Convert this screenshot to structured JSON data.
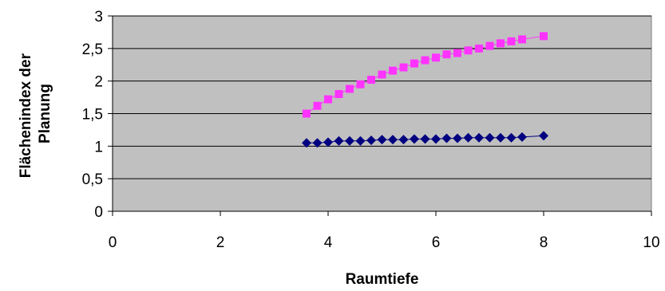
{
  "chart_data": {
    "type": "scatter",
    "xlabel": "Raumtiefe",
    "ylabel_lines": [
      "Flächenindex der",
      "Planung"
    ],
    "xlim": [
      0,
      10
    ],
    "ylim": [
      0,
      3
    ],
    "x_ticks": [
      0,
      2,
      4,
      6,
      8,
      10
    ],
    "x_tick_labels": [
      "0",
      "2",
      "4",
      "6",
      "8",
      "10"
    ],
    "y_ticks": [
      0,
      0.5,
      1,
      1.5,
      2,
      2.5,
      3
    ],
    "y_tick_labels": [
      "0",
      "0,5",
      "1",
      "1,5",
      "2",
      "2,5",
      "3"
    ],
    "grid": "horizontal",
    "plot_background": "#c0c0c0",
    "series": [
      {
        "marker": "square",
        "color": "#ff33ff",
        "x": [
          3.6,
          3.8,
          4.0,
          4.2,
          4.4,
          4.6,
          4.8,
          5.0,
          5.2,
          5.4,
          5.6,
          5.8,
          6.0,
          6.2,
          6.4,
          6.6,
          6.8,
          7.0,
          7.2,
          7.4,
          7.6,
          8.0
        ],
        "values": [
          1.5,
          1.62,
          1.72,
          1.8,
          1.88,
          1.95,
          2.02,
          2.1,
          2.16,
          2.21,
          2.27,
          2.32,
          2.36,
          2.41,
          2.43,
          2.47,
          2.5,
          2.54,
          2.58,
          2.61,
          2.64,
          2.69
        ]
      },
      {
        "marker": "diamond",
        "color": "#000080",
        "x": [
          3.6,
          3.8,
          4.0,
          4.2,
          4.4,
          4.6,
          4.8,
          5.0,
          5.2,
          5.4,
          5.6,
          5.8,
          6.0,
          6.2,
          6.4,
          6.6,
          6.8,
          7.0,
          7.2,
          7.4,
          7.6,
          8.0
        ],
        "values": [
          1.05,
          1.05,
          1.06,
          1.08,
          1.08,
          1.08,
          1.09,
          1.1,
          1.1,
          1.1,
          1.11,
          1.11,
          1.11,
          1.12,
          1.12,
          1.13,
          1.13,
          1.13,
          1.13,
          1.13,
          1.14,
          1.16
        ]
      }
    ]
  }
}
